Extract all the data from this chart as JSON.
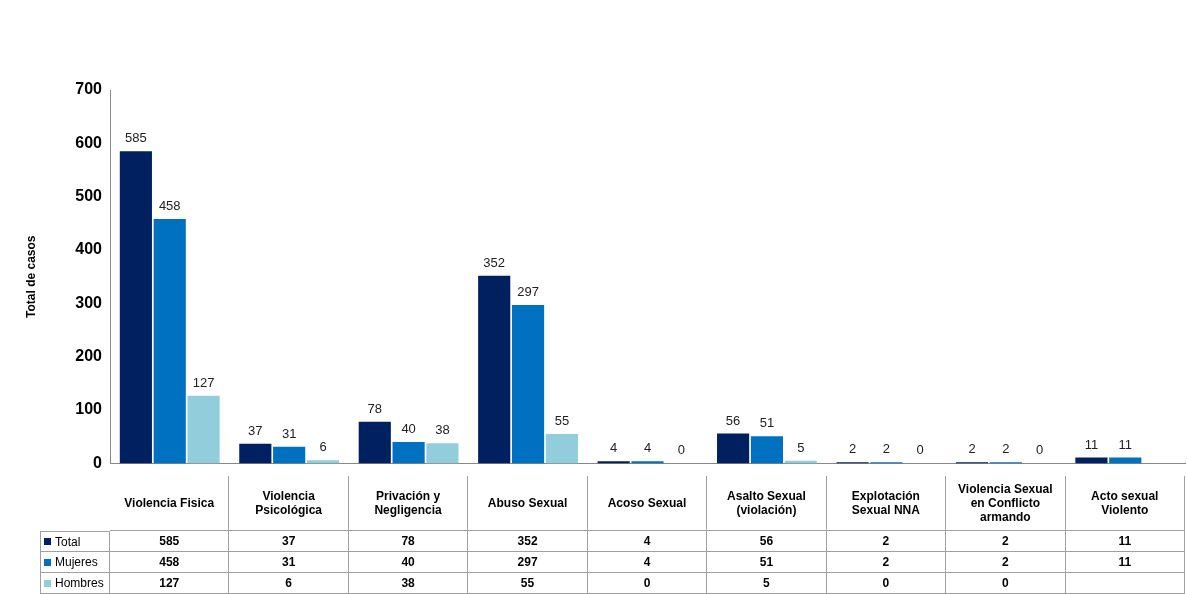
{
  "chart_data": {
    "type": "bar",
    "ylabel": "Total de casos",
    "categories": [
      "Violencia Fisica",
      "Violencia Psicológica",
      "Privación y Negligencia",
      "Abuso Sexual",
      "Acoso Sexual",
      "Asalto Sexual (violación)",
      "Explotación Sexual NNA",
      "Violencia Sexual en Conflicto armando",
      "Acto sexual Violento"
    ],
    "series": [
      {
        "name": "Total",
        "color": "#002060",
        "values": [
          585,
          37,
          78,
          352,
          4,
          56,
          2,
          2,
          11
        ]
      },
      {
        "name": "Mujeres",
        "color": "#0070c0",
        "values": [
          458,
          31,
          40,
          297,
          4,
          51,
          2,
          2,
          11
        ]
      },
      {
        "name": "Hombres",
        "color": "#92cddc",
        "values": [
          127,
          6,
          38,
          55,
          0,
          5,
          0,
          0,
          null
        ]
      }
    ],
    "annotations": [
      "585",
      "458",
      "127",
      "37",
      "31",
      "6",
      "78",
      "40",
      "38",
      "352",
      "297",
      "55",
      "4",
      "4",
      "0",
      "56",
      "51",
      "5",
      "2",
      "2",
      "0",
      "2",
      "2",
      "0",
      "11",
      "11"
    ],
    "ylim": [
      0,
      700
    ],
    "yticks": [
      0,
      100,
      200,
      300,
      400,
      500,
      600,
      700
    ],
    "grid": false,
    "legend": "bottom left",
    "data_labels": true
  }
}
